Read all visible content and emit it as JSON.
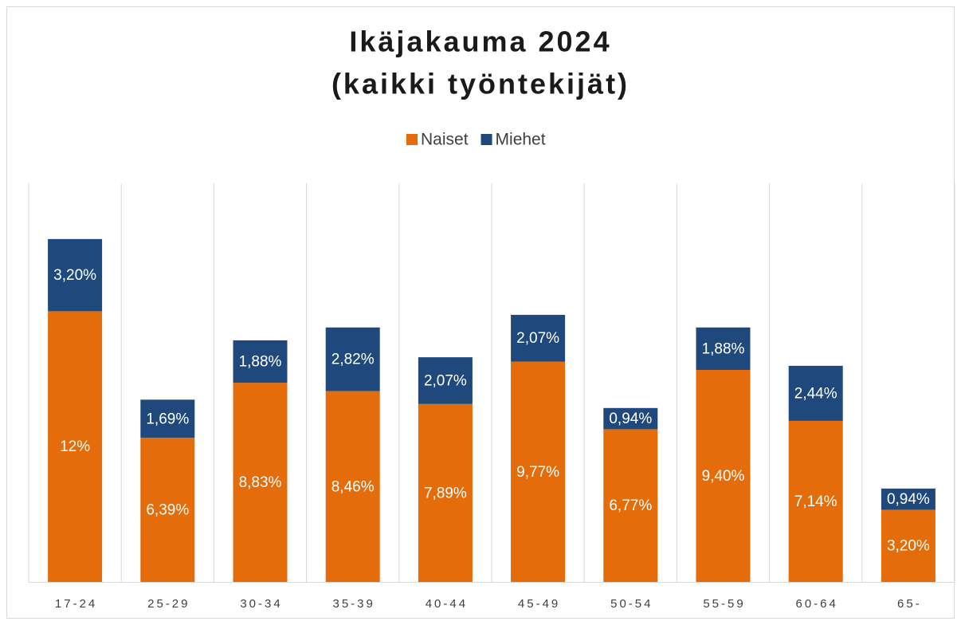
{
  "chart_data": {
    "type": "stacked_bar",
    "title": [
      "Ikäjakauma 2024",
      "(kaikki työntekijät)"
    ],
    "categories": [
      "17-24",
      "25-29",
      "30-34",
      "35-39",
      "40-44",
      "45-49",
      "50-54",
      "55-59",
      "60-64",
      "65-"
    ],
    "series": [
      {
        "name": "Naiset",
        "color": "#e46c0a",
        "values": [
          12,
          6.39,
          8.83,
          8.46,
          7.89,
          9.77,
          6.77,
          9.4,
          7.14,
          3.2
        ],
        "value_labels": [
          "12%",
          "6,39%",
          "8,83%",
          "8,46%",
          "7,89%",
          "9,77%",
          "6,77%",
          "9,40%",
          "7,14%",
          "3,20%"
        ]
      },
      {
        "name": "Miehet",
        "color": "#1f497d",
        "values": [
          3.2,
          1.69,
          1.88,
          2.82,
          2.07,
          2.07,
          0.94,
          1.88,
          2.44,
          0.94
        ],
        "value_labels": [
          "3,20%",
          "1,69%",
          "1,88%",
          "2,82%",
          "2,07%",
          "2,07%",
          "0,94%",
          "1,88%",
          "2,44%",
          "0,94%"
        ]
      }
    ],
    "legend": "top"
  }
}
